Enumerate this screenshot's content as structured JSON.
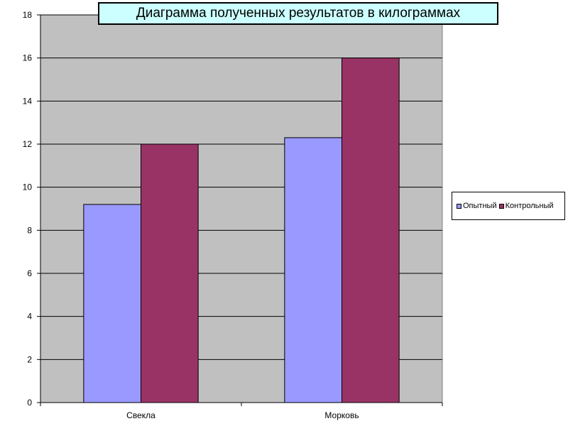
{
  "chart_data": {
    "type": "bar",
    "title": "Диаграмма  полученных  результатов в килограммах",
    "categories": [
      "Свекла",
      "Морковь"
    ],
    "series": [
      {
        "name": "Опытный",
        "values": [
          9.2,
          12.3
        ],
        "color": "#9999ff"
      },
      {
        "name": "Контрольный",
        "values": [
          12,
          16
        ],
        "color": "#993366"
      }
    ],
    "xlabel": "",
    "ylabel": "",
    "ylim": [
      0,
      18
    ],
    "yticks": [
      0,
      2,
      4,
      6,
      8,
      10,
      12,
      14,
      16,
      18
    ],
    "grid": true,
    "legend_position": "right",
    "plot_background": "#c0c0c0"
  }
}
